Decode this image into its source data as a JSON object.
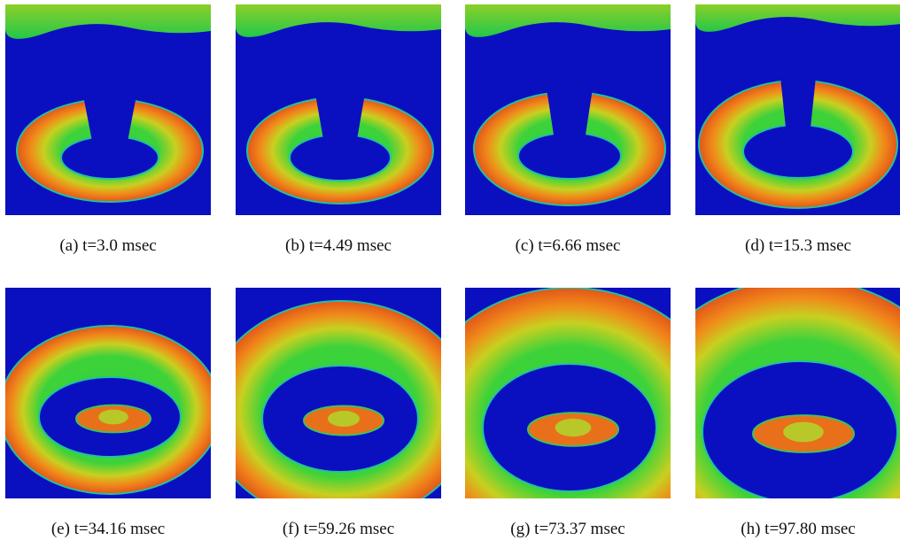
{
  "figure": {
    "panels": [
      {
        "caption": "(a) t=3.0 msec"
      },
      {
        "caption": "(b) t=4.49 msec"
      },
      {
        "caption": "(c) t=6.66 msec"
      },
      {
        "caption": "(d) t=15.3 msec"
      },
      {
        "caption": "(e) t=34.16 msec"
      },
      {
        "caption": "(f) t=59.26 msec"
      },
      {
        "caption": "(g) t=73.37 msec"
      },
      {
        "caption": "(h) t=97.80 msec"
      }
    ]
  }
}
